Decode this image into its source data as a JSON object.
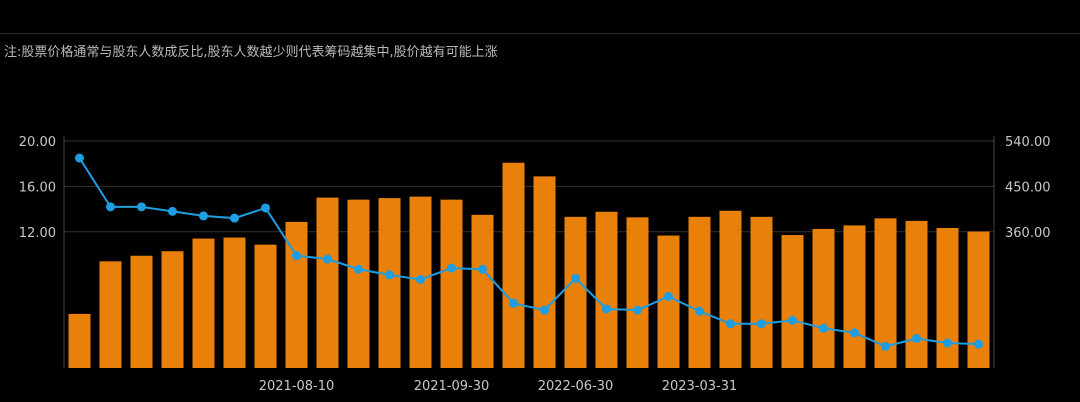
{
  "note": "注:股票价格通常与股东人数成反比,股东人数越少则代表筹码越集中,股价越有可能上涨",
  "colors": {
    "bar": "#e8800a",
    "line": "#1e9ee0",
    "grid": "#333333",
    "text": "#c8c8c8"
  },
  "chart_data": {
    "type": "bar+line",
    "categories": [
      "",
      "",
      "",
      "",
      "",
      "",
      "",
      "2021-08-10",
      "",
      "",
      "",
      "",
      "2021-09-30",
      "",
      "",
      "",
      "2022-06-30",
      "",
      "",
      "",
      "2023-03-31",
      "",
      "",
      "",
      "",
      "",
      "",
      "",
      "",
      ""
    ],
    "series": [
      {
        "axis": "right",
        "type": "bar",
        "values": [
          198,
          302,
          313,
          322,
          347,
          349,
          335,
          380,
          428,
          424,
          427,
          430,
          424,
          394,
          497,
          470,
          390,
          400,
          389,
          353,
          390,
          402,
          390,
          354,
          366,
          373,
          387,
          382,
          368,
          361
        ]
      },
      {
        "axis": "left",
        "type": "line",
        "values": [
          18.5,
          14.2,
          14.2,
          13.8,
          13.4,
          13.2,
          14.1,
          9.9,
          9.6,
          8.7,
          8.2,
          7.8,
          8.8,
          8.7,
          5.7,
          5.1,
          7.9,
          5.2,
          5.1,
          6.3,
          5.0,
          3.9,
          3.9,
          4.2,
          3.5,
          3.1,
          1.9,
          2.6,
          2.2,
          2.1
        ]
      }
    ],
    "y_left": {
      "ticks": [
        "20.00",
        "16.00",
        "12.00"
      ],
      "range": [
        0,
        20
      ]
    },
    "y_right": {
      "ticks": [
        "540.00",
        "450.00",
        "360.00"
      ],
      "range": [
        90,
        540
      ]
    },
    "grid": true
  }
}
